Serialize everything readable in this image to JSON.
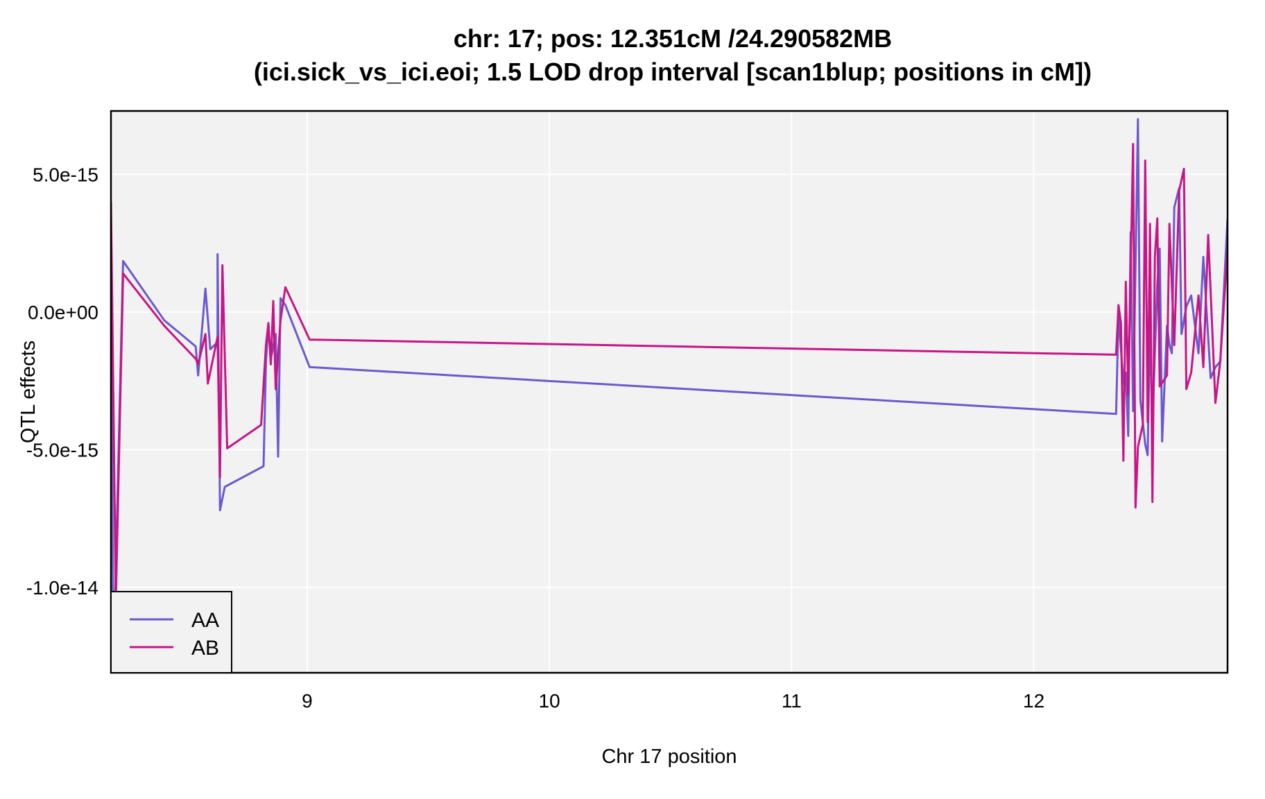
{
  "chart_data": {
    "type": "line",
    "title": "chr: 17; pos: 12.351cM /24.290582MB",
    "subtitle": "(ici.sick_vs_ici.eoi; 1.5 LOD drop interval [scan1blup; positions in cM])",
    "xlabel": "Chr 17 position",
    "ylabel": "QTL effects",
    "xlim": [
      8.19,
      12.8
    ],
    "ylim": [
      -1.31e-14,
      7.3e-15
    ],
    "x_ticks": [
      9,
      10,
      11,
      12
    ],
    "x_tick_labels": [
      "9",
      "10",
      "11",
      "12"
    ],
    "y_ticks": [
      5e-15,
      0,
      -5e-15,
      -1e-14
    ],
    "y_tick_labels": [
      "5.0e-15",
      "0.0e+00",
      "-5.0e-15",
      "-1.0e-14"
    ],
    "grid": true,
    "legend_position": "bottom-left",
    "series": [
      {
        "name": "AA",
        "color": "#6a5acd",
        "x": [
          8.19,
          8.2,
          8.24,
          8.41,
          8.54,
          8.55,
          8.58,
          8.6,
          8.63,
          8.63,
          8.64,
          8.66,
          8.82,
          8.83,
          8.84,
          8.85,
          8.87,
          8.88,
          8.89,
          8.91,
          9.01,
          12.34,
          12.35,
          12.37,
          12.38,
          12.39,
          12.4,
          12.41,
          12.43,
          12.44,
          12.46,
          12.47,
          12.48,
          12.49,
          12.5,
          12.51,
          12.52,
          12.53,
          12.55,
          12.56,
          12.57,
          12.58,
          12.6,
          12.61,
          12.63,
          12.65,
          12.68,
          12.7,
          12.73,
          12.75,
          12.77,
          12.8
        ],
        "y": [
          1.7e-15,
          -1.3e-14,
          1.85e-15,
          -3e-16,
          -1.25e-15,
          -2.3e-15,
          8.5e-16,
          -1.35e-15,
          -1.1e-15,
          2.1e-15,
          -7.2e-15,
          -6.35e-15,
          -5.6e-15,
          -1.8e-15,
          -4.5e-16,
          -1.7e-15,
          -8e-16,
          -5.25e-15,
          5e-16,
          2.5e-16,
          -2e-15,
          -3.7e-15,
          -1e-16,
          -2.6e-15,
          -2.2e-15,
          -4.5e-15,
          2.9e-15,
          -3.6e-15,
          7e-15,
          -3.2e-15,
          -4.8e-15,
          -5.2e-15,
          -4e-16,
          -4.2e-15,
          -1.5e-15,
          1e-15,
          2.3e-15,
          -4.7e-15,
          -5e-16,
          -1.2e-15,
          -1.5e-15,
          3.8e-15,
          4.5e-15,
          -8e-16,
          2e-16,
          6e-16,
          -1.5e-15,
          2e-15,
          -2.4e-15,
          -2e-15,
          -1.8e-15,
          3.4e-15
        ]
      },
      {
        "name": "AB",
        "color": "#c71585",
        "x": [
          8.19,
          8.21,
          8.24,
          8.41,
          8.54,
          8.55,
          8.58,
          8.59,
          8.63,
          8.64,
          8.65,
          8.67,
          8.81,
          8.83,
          8.84,
          8.85,
          8.86,
          8.87,
          8.89,
          8.91,
          9.01,
          12.34,
          12.35,
          12.36,
          12.37,
          12.38,
          12.39,
          12.41,
          12.42,
          12.43,
          12.45,
          12.46,
          12.47,
          12.48,
          12.49,
          12.5,
          12.51,
          12.52,
          12.55,
          12.56,
          12.58,
          12.6,
          12.62,
          12.63,
          12.65,
          12.68,
          12.7,
          12.72,
          12.75,
          12.77,
          12.8
        ],
        "y": [
          4e-15,
          -1.05e-14,
          1.4e-15,
          -5e-16,
          -1.7e-15,
          -1.9e-15,
          -8e-16,
          -2.6e-15,
          -9e-16,
          -6e-15,
          1.7e-15,
          -4.95e-15,
          -4.1e-15,
          -1.2e-15,
          -4e-16,
          -1.9e-15,
          4e-16,
          -2.8e-15,
          -3e-16,
          9e-16,
          -1e-15,
          -1.55e-15,
          2.5e-16,
          -4e-16,
          -5.4e-15,
          1.1e-15,
          -3e-15,
          6.1e-15,
          -7.1e-15,
          -4.9e-15,
          -4.1e-15,
          5.5e-15,
          -4e-15,
          3.2e-15,
          -6.9e-15,
          2e-15,
          3.4e-15,
          -2.7e-15,
          -2.3e-15,
          3.2e-15,
          -1.2e-15,
          4.4e-15,
          5.2e-15,
          -2.8e-15,
          -2.2e-15,
          6e-16,
          -2e-15,
          2.8e-15,
          -3.3e-15,
          -1.8e-15,
          2.3e-15
        ]
      }
    ]
  }
}
